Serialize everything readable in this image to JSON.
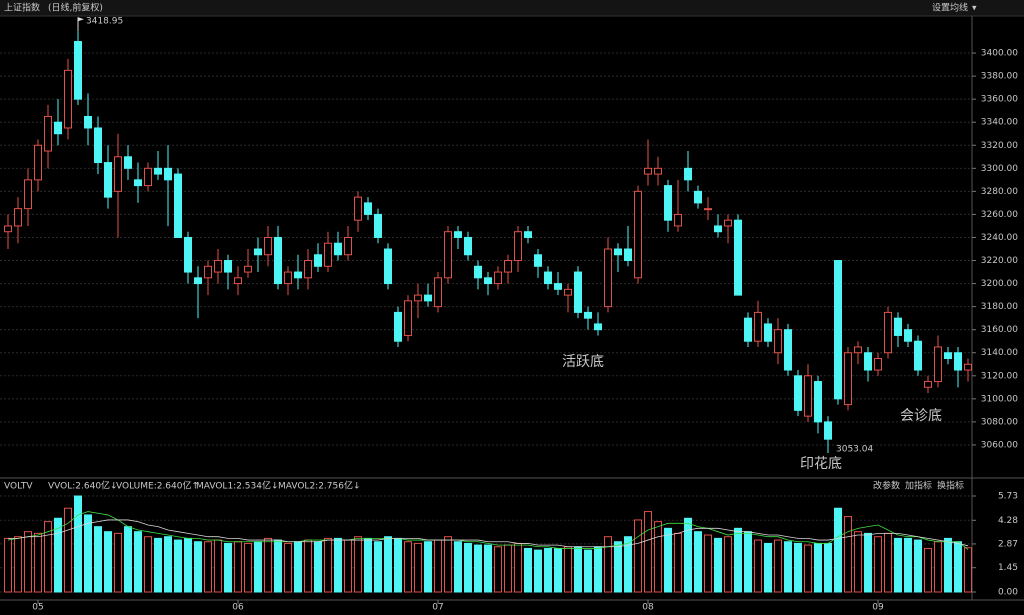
{
  "chart_data": {
    "type": "candlestick",
    "title": "上证指数",
    "subtitle": "(日线,前复权)",
    "settings_button": "设置均线",
    "ylim": [
      3040,
      3420
    ],
    "yticks": [
      {
        "value": 3060,
        "label": "3060.00"
      },
      {
        "value": 3080,
        "label": "3080.00"
      },
      {
        "value": 3100,
        "label": "3100.00"
      },
      {
        "value": 3120,
        "label": "3120.00"
      },
      {
        "value": 3140,
        "label": "3140.00"
      },
      {
        "value": 3160,
        "label": "3160.00"
      },
      {
        "value": 3180,
        "label": "3180.00"
      },
      {
        "value": 3200,
        "label": "3200.00"
      },
      {
        "value": 3220,
        "label": "3220.00"
      },
      {
        "value": 3240,
        "label": "3240.00"
      },
      {
        "value": 3260,
        "label": "3260.00"
      },
      {
        "value": 3280,
        "label": "3280.00"
      },
      {
        "value": 3300,
        "label": "3300.00"
      },
      {
        "value": 3320,
        "label": "3320.00"
      },
      {
        "value": 3340,
        "label": "3340.00"
      },
      {
        "value": 3360,
        "label": "3360.00"
      },
      {
        "value": 3380,
        "label": "3380.00"
      },
      {
        "value": 3400,
        "label": "3400.00"
      }
    ],
    "up_color": "#e0524a",
    "down_color": "#4ff5f5",
    "categories": [
      null,
      null,
      null,
      "05",
      null,
      null,
      null,
      null,
      null,
      null,
      null,
      null,
      null,
      null,
      null,
      null,
      null,
      null,
      null,
      null,
      null,
      null,
      null,
      "06",
      null,
      null,
      null,
      null,
      null,
      null,
      null,
      null,
      null,
      null,
      null,
      null,
      null,
      null,
      null,
      null,
      null,
      null,
      null,
      "07",
      null,
      null,
      null,
      null,
      null,
      null,
      null,
      null,
      null,
      null,
      null,
      null,
      null,
      null,
      null,
      null,
      null,
      null,
      null,
      null,
      "08",
      null,
      null,
      null,
      null,
      null,
      null,
      null,
      null,
      null,
      null,
      null,
      null,
      null,
      null,
      null,
      null,
      null,
      null,
      null,
      null,
      null,
      null,
      "09",
      null,
      null,
      null,
      null,
      null,
      null,
      null,
      null,
      null
    ],
    "candles": [
      [
        3245,
        3260,
        3230,
        3250
      ],
      [
        3250,
        3275,
        3235,
        3265
      ],
      [
        3265,
        3300,
        3250,
        3290
      ],
      [
        3290,
        3325,
        3280,
        3320
      ],
      [
        3315,
        3355,
        3300,
        3345
      ],
      [
        3340,
        3360,
        3320,
        3330
      ],
      [
        3335,
        3395,
        3325,
        3385
      ],
      [
        3410,
        3418.95,
        3355,
        3360
      ],
      [
        3345,
        3365,
        3320,
        3335
      ],
      [
        3335,
        3345,
        3295,
        3305
      ],
      [
        3305,
        3320,
        3265,
        3275
      ],
      [
        3280,
        3330,
        3240,
        3310
      ],
      [
        3310,
        3320,
        3290,
        3300
      ],
      [
        3290,
        3305,
        3270,
        3285
      ],
      [
        3285,
        3305,
        3280,
        3300
      ],
      [
        3300,
        3315,
        3290,
        3295
      ],
      [
        3300,
        3320,
        3250,
        3290
      ],
      [
        3295,
        3300,
        3240,
        3240
      ],
      [
        3240,
        3245,
        3200,
        3210
      ],
      [
        3205,
        3215,
        3170,
        3200
      ],
      [
        3205,
        3220,
        3190,
        3215
      ],
      [
        3210,
        3230,
        3200,
        3220
      ],
      [
        3220,
        3225,
        3195,
        3210
      ],
      [
        3200,
        3215,
        3190,
        3205
      ],
      [
        3210,
        3230,
        3205,
        3215
      ],
      [
        3230,
        3240,
        3210,
        3225
      ],
      [
        3225,
        3250,
        3215,
        3240
      ],
      [
        3240,
        3250,
        3195,
        3200
      ],
      [
        3200,
        3215,
        3190,
        3210
      ],
      [
        3210,
        3225,
        3195,
        3205
      ],
      [
        3205,
        3230,
        3195,
        3220
      ],
      [
        3225,
        3235,
        3210,
        3215
      ],
      [
        3215,
        3245,
        3210,
        3235
      ],
      [
        3235,
        3245,
        3220,
        3225
      ],
      [
        3225,
        3250,
        3220,
        3240
      ],
      [
        3255,
        3280,
        3245,
        3275
      ],
      [
        3270,
        3275,
        3255,
        3260
      ],
      [
        3260,
        3265,
        3235,
        3240
      ],
      [
        3230,
        3235,
        3195,
        3200
      ],
      [
        3175,
        3180,
        3145,
        3150
      ],
      [
        3155,
        3190,
        3150,
        3185
      ],
      [
        3185,
        3200,
        3170,
        3190
      ],
      [
        3190,
        3200,
        3180,
        3185
      ],
      [
        3180,
        3210,
        3175,
        3205
      ],
      [
        3205,
        3250,
        3200,
        3245
      ],
      [
        3245,
        3250,
        3230,
        3240
      ],
      [
        3240,
        3245,
        3220,
        3225
      ],
      [
        3215,
        3220,
        3195,
        3205
      ],
      [
        3205,
        3210,
        3190,
        3200
      ],
      [
        3200,
        3215,
        3195,
        3210
      ],
      [
        3210,
        3225,
        3200,
        3220
      ],
      [
        3220,
        3250,
        3210,
        3245
      ],
      [
        3245,
        3250,
        3235,
        3240
      ],
      [
        3225,
        3230,
        3205,
        3215
      ],
      [
        3210,
        3215,
        3195,
        3200
      ],
      [
        3200,
        3210,
        3190,
        3195
      ],
      [
        3190,
        3200,
        3175,
        3195
      ],
      [
        3210,
        3215,
        3170,
        3175
      ],
      [
        3175,
        3180,
        3160,
        3170
      ],
      [
        3165,
        3175,
        3155,
        3160
      ],
      [
        3180,
        3240,
        3175,
        3230
      ],
      [
        3230,
        3235,
        3210,
        3225
      ],
      [
        3230,
        3250,
        3215,
        3220
      ],
      [
        3205,
        3285,
        3200,
        3280
      ],
      [
        3295,
        3325,
        3285,
        3300
      ],
      [
        3295,
        3310,
        3285,
        3300
      ],
      [
        3285,
        3290,
        3245,
        3255
      ],
      [
        3250,
        3290,
        3245,
        3260
      ],
      [
        3300,
        3315,
        3280,
        3290
      ],
      [
        3280,
        3285,
        3265,
        3270
      ],
      [
        3265,
        3275,
        3255,
        3265
      ],
      [
        3250,
        3260,
        3240,
        3245
      ],
      [
        3250,
        3260,
        3235,
        3255
      ],
      [
        3255,
        3260,
        3190,
        3190
      ],
      [
        3170,
        3175,
        3145,
        3150
      ],
      [
        3150,
        3185,
        3145,
        3175
      ],
      [
        3165,
        3170,
        3145,
        3150
      ],
      [
        3140,
        3170,
        3130,
        3160
      ],
      [
        3160,
        3165,
        3120,
        3125
      ],
      [
        3120,
        3125,
        3085,
        3090
      ],
      [
        3085,
        3130,
        3080,
        3120
      ],
      [
        3115,
        3120,
        3070,
        3080
      ],
      [
        3080,
        3085,
        3053.04,
        3065
      ],
      [
        3220,
        3220,
        3095,
        3100
      ],
      [
        3095,
        3145,
        3090,
        3140
      ],
      [
        3140,
        3150,
        3130,
        3145
      ],
      [
        3140,
        3145,
        3115,
        3125
      ],
      [
        3125,
        3140,
        3120,
        3135
      ],
      [
        3140,
        3180,
        3135,
        3175
      ],
      [
        3170,
        3175,
        3145,
        3155
      ],
      [
        3160,
        3165,
        3145,
        3150
      ],
      [
        3150,
        3155,
        3120,
        3125
      ],
      [
        3110,
        3120,
        3105,
        3115
      ],
      [
        3115,
        3155,
        3110,
        3145
      ],
      [
        3140,
        3145,
        3130,
        3135
      ],
      [
        3140,
        3145,
        3110,
        3125
      ],
      [
        3125,
        3135,
        3115,
        3130
      ]
    ],
    "annotations": [
      "3418.95",
      "3053.04",
      "活跃底",
      "印花底",
      "会诊底"
    ],
    "volume": {
      "name": "VOLTV",
      "labels": [
        "VVOL:2.640亿↓",
        "VOLUME:2.640亿↑",
        "MAVOL1:2.534亿↓",
        "MAVOL2:2.756亿↓"
      ],
      "buttons": [
        "改参数",
        "加指标",
        "换指标"
      ],
      "ylim": [
        0,
        5.73
      ],
      "yticks": [
        {
          "value": 0,
          "label": "0.00"
        },
        1.45,
        2.87,
        4.28,
        5.73
      ],
      "values": [
        3.2,
        3.3,
        3.6,
        3.5,
        4.2,
        4.4,
        5.0,
        5.73,
        4.6,
        3.9,
        3.6,
        3.5,
        3.9,
        3.6,
        3.3,
        3.2,
        3.3,
        3.1,
        3.2,
        3.0,
        3.0,
        3.1,
        2.9,
        3.0,
        2.9,
        3.0,
        3.2,
        3.1,
        2.9,
        3.0,
        3.1,
        3.0,
        3.2,
        3.2,
        3.1,
        3.3,
        3.2,
        3.0,
        3.3,
        3.2,
        3.0,
        2.9,
        3.0,
        3.1,
        3.3,
        3.0,
        2.9,
        2.8,
        2.8,
        2.7,
        2.8,
        2.9,
        2.6,
        2.5,
        2.6,
        2.6,
        2.7,
        2.7,
        2.5,
        2.7,
        3.3,
        3.0,
        3.3,
        4.3,
        4.8,
        4.2,
        3.8,
        3.5,
        4.4,
        3.6,
        3.4,
        3.2,
        3.3,
        3.8,
        3.6,
        3.1,
        2.9,
        3.1,
        3.0,
        2.9,
        2.8,
        2.9,
        2.9,
        5.0,
        4.5,
        3.6,
        3.5,
        3.3,
        3.5,
        3.2,
        3.2,
        3.1,
        2.6,
        3.0,
        3.2,
        3.0,
        2.64
      ],
      "series": [
        {
          "name": "MAVOL1",
          "color": "#40e040",
          "values": [
            3.1,
            3.2,
            3.3,
            3.4,
            3.6,
            3.8,
            4.1,
            4.6,
            4.8,
            4.7,
            4.6,
            4.3,
            3.9,
            3.7,
            3.6,
            3.5,
            3.4,
            3.3,
            3.2,
            3.2,
            3.1,
            3.1,
            3.0,
            3.0,
            3.0,
            3.0,
            3.0,
            3.0,
            3.0,
            3.0,
            3.1,
            3.1,
            3.1,
            3.1,
            3.1,
            3.2,
            3.2,
            3.2,
            3.2,
            3.2,
            3.1,
            3.1,
            3.1,
            3.1,
            3.1,
            3.1,
            3.0,
            3.0,
            2.9,
            2.8,
            2.8,
            2.8,
            2.8,
            2.7,
            2.7,
            2.6,
            2.6,
            2.6,
            2.6,
            2.6,
            2.7,
            2.8,
            2.9,
            3.3,
            3.7,
            3.9,
            4.1,
            4.1,
            4.1,
            3.9,
            3.8,
            3.6,
            3.4,
            3.5,
            3.5,
            3.4,
            3.3,
            3.3,
            3.1,
            3.0,
            3.0,
            2.9,
            2.9,
            3.3,
            3.6,
            3.8,
            3.9,
            4.0,
            3.7,
            3.4,
            3.3,
            3.3,
            3.1,
            3.0,
            3.0,
            3.0,
            2.534
          ]
        },
        {
          "name": "MAVOL2",
          "color": "#d8d8d8",
          "values": [
            3.2,
            3.2,
            3.3,
            3.3,
            3.4,
            3.5,
            3.7,
            3.9,
            4.1,
            4.2,
            4.3,
            4.3,
            4.3,
            4.2,
            4.0,
            3.9,
            3.7,
            3.6,
            3.5,
            3.4,
            3.3,
            3.3,
            3.2,
            3.2,
            3.1,
            3.1,
            3.1,
            3.1,
            3.0,
            3.0,
            3.0,
            3.0,
            3.1,
            3.1,
            3.1,
            3.1,
            3.1,
            3.1,
            3.2,
            3.2,
            3.2,
            3.2,
            3.1,
            3.1,
            3.1,
            3.1,
            3.1,
            3.1,
            3.0,
            3.0,
            3.0,
            2.9,
            2.9,
            2.8,
            2.8,
            2.8,
            2.7,
            2.7,
            2.7,
            2.7,
            2.7,
            2.7,
            2.8,
            2.9,
            3.1,
            3.3,
            3.4,
            3.5,
            3.7,
            3.8,
            3.8,
            3.8,
            3.7,
            3.6,
            3.6,
            3.5,
            3.4,
            3.4,
            3.3,
            3.2,
            3.2,
            3.1,
            3.1,
            3.2,
            3.3,
            3.4,
            3.4,
            3.5,
            3.5,
            3.5,
            3.4,
            3.3,
            3.2,
            3.1,
            3.0,
            2.9,
            2.756
          ]
        }
      ]
    }
  }
}
